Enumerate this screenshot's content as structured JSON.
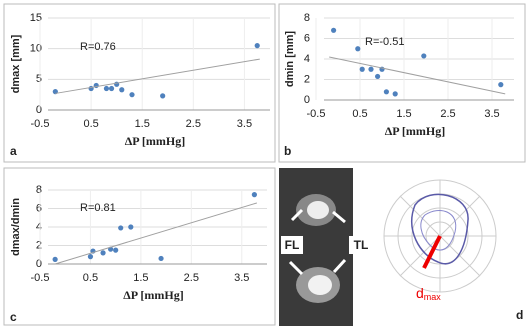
{
  "chart_data": [
    {
      "type": "scatter",
      "panel": "a",
      "ylabel": "dmax [mm]",
      "xlabel": "ΔP [mmHg]",
      "annotation": "R=0.76",
      "x": [
        -0.2,
        0.5,
        0.6,
        0.8,
        0.9,
        1.0,
        1.1,
        1.3,
        1.9,
        3.75
      ],
      "values": [
        3,
        3.5,
        4,
        3.5,
        3.5,
        4.2,
        3.3,
        2.5,
        2.3,
        10.5
      ],
      "color": "#4f81bd",
      "trendline": {
        "x": [
          -0.2,
          3.8
        ],
        "values": [
          2.7,
          8.3
        ],
        "color": "#a0a0a0"
      },
      "xlim": [
        -0.5,
        4
      ],
      "xticks": [
        -0.5,
        0.5,
        1.5,
        2.5,
        3.5
      ],
      "ylim": [
        0,
        15
      ],
      "yticks": [
        0,
        5,
        10,
        15
      ],
      "grid": true
    },
    {
      "type": "scatter",
      "panel": "b",
      "ylabel": "dmin [mm]",
      "xlabel": "ΔP [mmHg]",
      "annotation": "R=-0.51",
      "x": [
        -0.1,
        0.45,
        0.55,
        0.75,
        0.9,
        1.0,
        1.1,
        1.3,
        1.95,
        3.7
      ],
      "values": [
        6.8,
        5,
        3,
        3,
        2.3,
        3,
        0.8,
        0.6,
        4.3,
        1.5
      ],
      "color": "#4f81bd",
      "trendline": {
        "x": [
          -0.2,
          3.8
        ],
        "values": [
          4.2,
          0.6
        ],
        "color": "#a0a0a0"
      },
      "xlim": [
        -0.5,
        4
      ],
      "xticks": [
        -0.5,
        0.5,
        1.5,
        2.5,
        3.5
      ],
      "ylim": [
        0,
        8
      ],
      "yticks": [
        0,
        2,
        4,
        6,
        8
      ],
      "grid": true
    },
    {
      "type": "scatter",
      "panel": "c",
      "ylabel": "dmax/dmin",
      "xlabel": "ΔP [mmHg]",
      "annotation": "R=0.81",
      "x": [
        -0.2,
        0.5,
        0.55,
        0.75,
        0.9,
        1.0,
        1.1,
        1.3,
        1.9,
        3.75
      ],
      "values": [
        0.5,
        0.8,
        1.4,
        1.2,
        1.6,
        1.5,
        3.9,
        4,
        0.6,
        7.5
      ],
      "color": "#4f81bd",
      "trendline": {
        "x": [
          -0.2,
          3.8
        ],
        "values": [
          0,
          6.6
        ],
        "color": "#a0a0a0"
      },
      "xlim": [
        -0.5,
        4
      ],
      "xticks": [
        -0.5,
        0.5,
        1.5,
        2.5,
        3.5
      ],
      "ylim": [
        0,
        8
      ],
      "yticks": [
        0,
        2,
        4,
        6,
        8
      ],
      "grid": true
    }
  ],
  "image_panel": {
    "panel": "d",
    "labels": [
      "FL",
      "TL"
    ],
    "annotation": "d",
    "annotation_sub": "max"
  }
}
